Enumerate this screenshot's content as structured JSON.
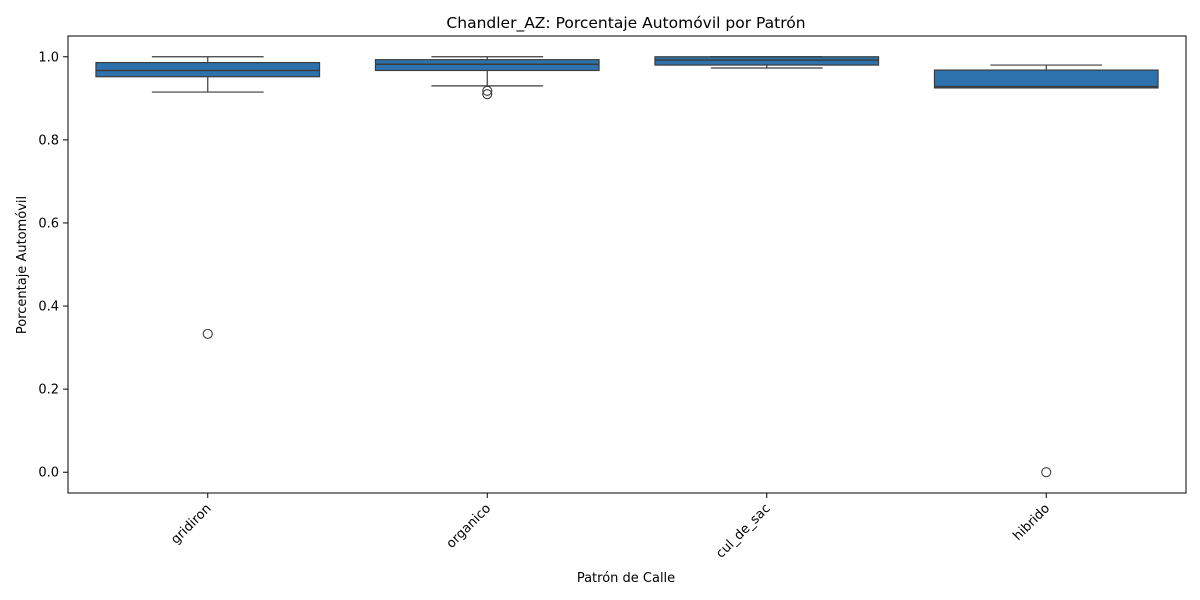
{
  "chart_data": {
    "type": "box",
    "title": "Chandler_AZ: Porcentaje Automóvil por Patrón",
    "xlabel": "Patrón de Calle",
    "ylabel": "Porcentaje Automóvil",
    "ylim": [
      -0.05,
      1.05
    ],
    "yticks": [
      "0.0",
      "0.2",
      "0.4",
      "0.6",
      "0.8",
      "1.0"
    ],
    "ytick_values": [
      0.0,
      0.2,
      0.4,
      0.6,
      0.8,
      1.0
    ],
    "grid": false,
    "box_color": "#2e72ad",
    "edge_color": "#3c3c3c",
    "categories": [
      "gridiron",
      "organico",
      "cul_de_sac",
      "hibrido"
    ],
    "boxes": [
      {
        "category": "gridiron",
        "whislo": 0.915,
        "q1": 0.952,
        "med": 0.967,
        "q3": 0.986,
        "whishi": 1.0,
        "fliers": [
          0.333
        ]
      },
      {
        "category": "organico",
        "whislo": 0.93,
        "q1": 0.967,
        "med": 0.982,
        "q3": 0.993,
        "whishi": 1.0,
        "fliers": [
          0.918,
          0.91
        ]
      },
      {
        "category": "cul_de_sac",
        "whislo": 0.973,
        "q1": 0.98,
        "med": 0.992,
        "q3": 1.0,
        "whishi": 1.0,
        "fliers": []
      },
      {
        "category": "hibrido",
        "whislo": 0.925,
        "q1": 0.925,
        "med": 0.928,
        "q3": 0.968,
        "whishi": 0.98,
        "fliers": [
          0.0
        ]
      }
    ]
  }
}
